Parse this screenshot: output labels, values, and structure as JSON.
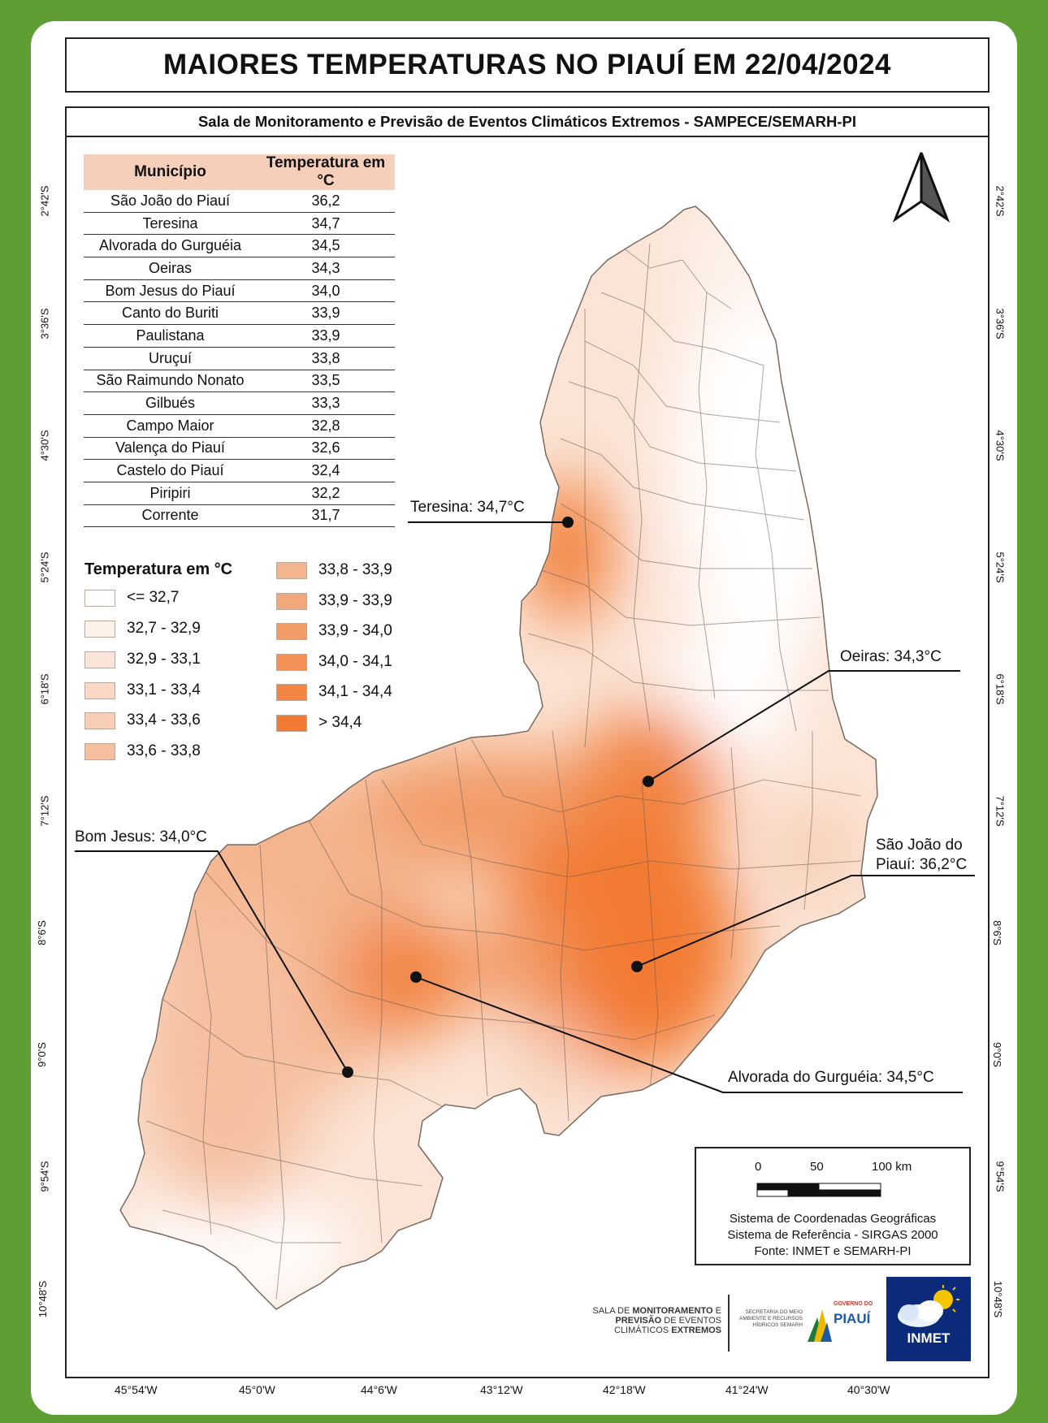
{
  "title": "MAIORES TEMPERATURAS NO PIAUÍ EM 22/04/2024",
  "subtitle": "Sala de Monitoramento e Previsão de Eventos Climáticos Extremos - SAMPECE/SEMARH-PI",
  "table": {
    "headers": [
      "Município",
      "Temperatura em °C"
    ],
    "rows": [
      {
        "name": "São João do Piauí",
        "temp": "36,2"
      },
      {
        "name": "Teresina",
        "temp": "34,7"
      },
      {
        "name": "Alvorada do Gurguéia",
        "temp": "34,5"
      },
      {
        "name": "Oeiras",
        "temp": "34,3"
      },
      {
        "name": "Bom Jesus do Piauí",
        "temp": "34,0"
      },
      {
        "name": "Canto do Buriti",
        "temp": "33,9"
      },
      {
        "name": "Paulistana",
        "temp": "33,9"
      },
      {
        "name": "Uruçuí",
        "temp": "33,8"
      },
      {
        "name": "São Raimundo Nonato",
        "temp": "33,5"
      },
      {
        "name": "Gilbués",
        "temp": "33,3"
      },
      {
        "name": "Campo Maior",
        "temp": "32,8"
      },
      {
        "name": "Valença do Piauí",
        "temp": "32,6"
      },
      {
        "name": "Castelo do Piauí",
        "temp": "32,4"
      },
      {
        "name": "Piripiri",
        "temp": "32,2"
      },
      {
        "name": "Corrente",
        "temp": "31,7"
      }
    ]
  },
  "legend": {
    "title": "Temperatura em °C",
    "classes": [
      {
        "label": "<= 32,7",
        "color": "#ffffff"
      },
      {
        "label": "32,7 - 32,9",
        "color": "#fdf1ea"
      },
      {
        "label": "32,9 - 33,1",
        "color": "#fbe5d8"
      },
      {
        "label": "33,1 - 33,4",
        "color": "#f9d9c6"
      },
      {
        "label": "33,4 - 33,6",
        "color": "#f7cdb3"
      },
      {
        "label": "33,6 - 33,8",
        "color": "#f5c0a0"
      },
      {
        "label": "33,8 - 33,9",
        "color": "#f4b48d"
      },
      {
        "label": "33,9 - 33,9",
        "color": "#f3a87b"
      },
      {
        "label": "33,9 - 34,0",
        "color": "#f29c68"
      },
      {
        "label": "34,0 - 34,1",
        "color": "#f29056"
      },
      {
        "label": "34,1 - 34,4",
        "color": "#f28544"
      },
      {
        "label": "> 34,4",
        "color": "#f27a33"
      }
    ]
  },
  "callouts": {
    "teresina": "Teresina: 34,7°C",
    "oeiras": "Oeiras: 34,3°C",
    "bom_jesus": "Bom Jesus: 34,0°C",
    "sao_joao_line1": "São João do",
    "sao_joao_line2": "Piauí: 36,2°C",
    "alvorada": "Alvorada do Gurguéia: 34,5°C"
  },
  "scale": {
    "labels": [
      "0",
      "50",
      "100 km"
    ],
    "source_lines": [
      "Sistema de Coordenadas Geográficas",
      "Sistema de Referência - SIRGAS 2000",
      "Fonte: INMET e SEMARH-PI"
    ]
  },
  "latitudes": [
    "2°42'S",
    "3°36'S",
    "4°30'S",
    "5°24'S",
    "6°18'S",
    "7°12'S",
    "8°6'S",
    "9°0'S",
    "9°54'S",
    "10°48'S"
  ],
  "longitudes": [
    "45°54'W",
    "45°0'W",
    "44°6'W",
    "43°12'W",
    "42°18'W",
    "41°24'W",
    "40°30'W"
  ],
  "logos": {
    "sampece_line1_a": "SALA DE ",
    "sampece_line1_b": "MONITORAMENTO",
    "sampece_line1_c": " E",
    "sampece_line2_a": "PREVISÃO",
    "sampece_line2_b": " DE EVENTOS",
    "sampece_line3_a": "CLIMÁTICOS ",
    "sampece_line3_b": "EXTREMOS",
    "semarh": "SECRETARIA DO MEIO AMBIENTE E RECURSOS HÍDRICOS SEMARH",
    "governo": "GOVERNO DO",
    "piaui": "PIAUÍ",
    "inmet": "INMET"
  }
}
